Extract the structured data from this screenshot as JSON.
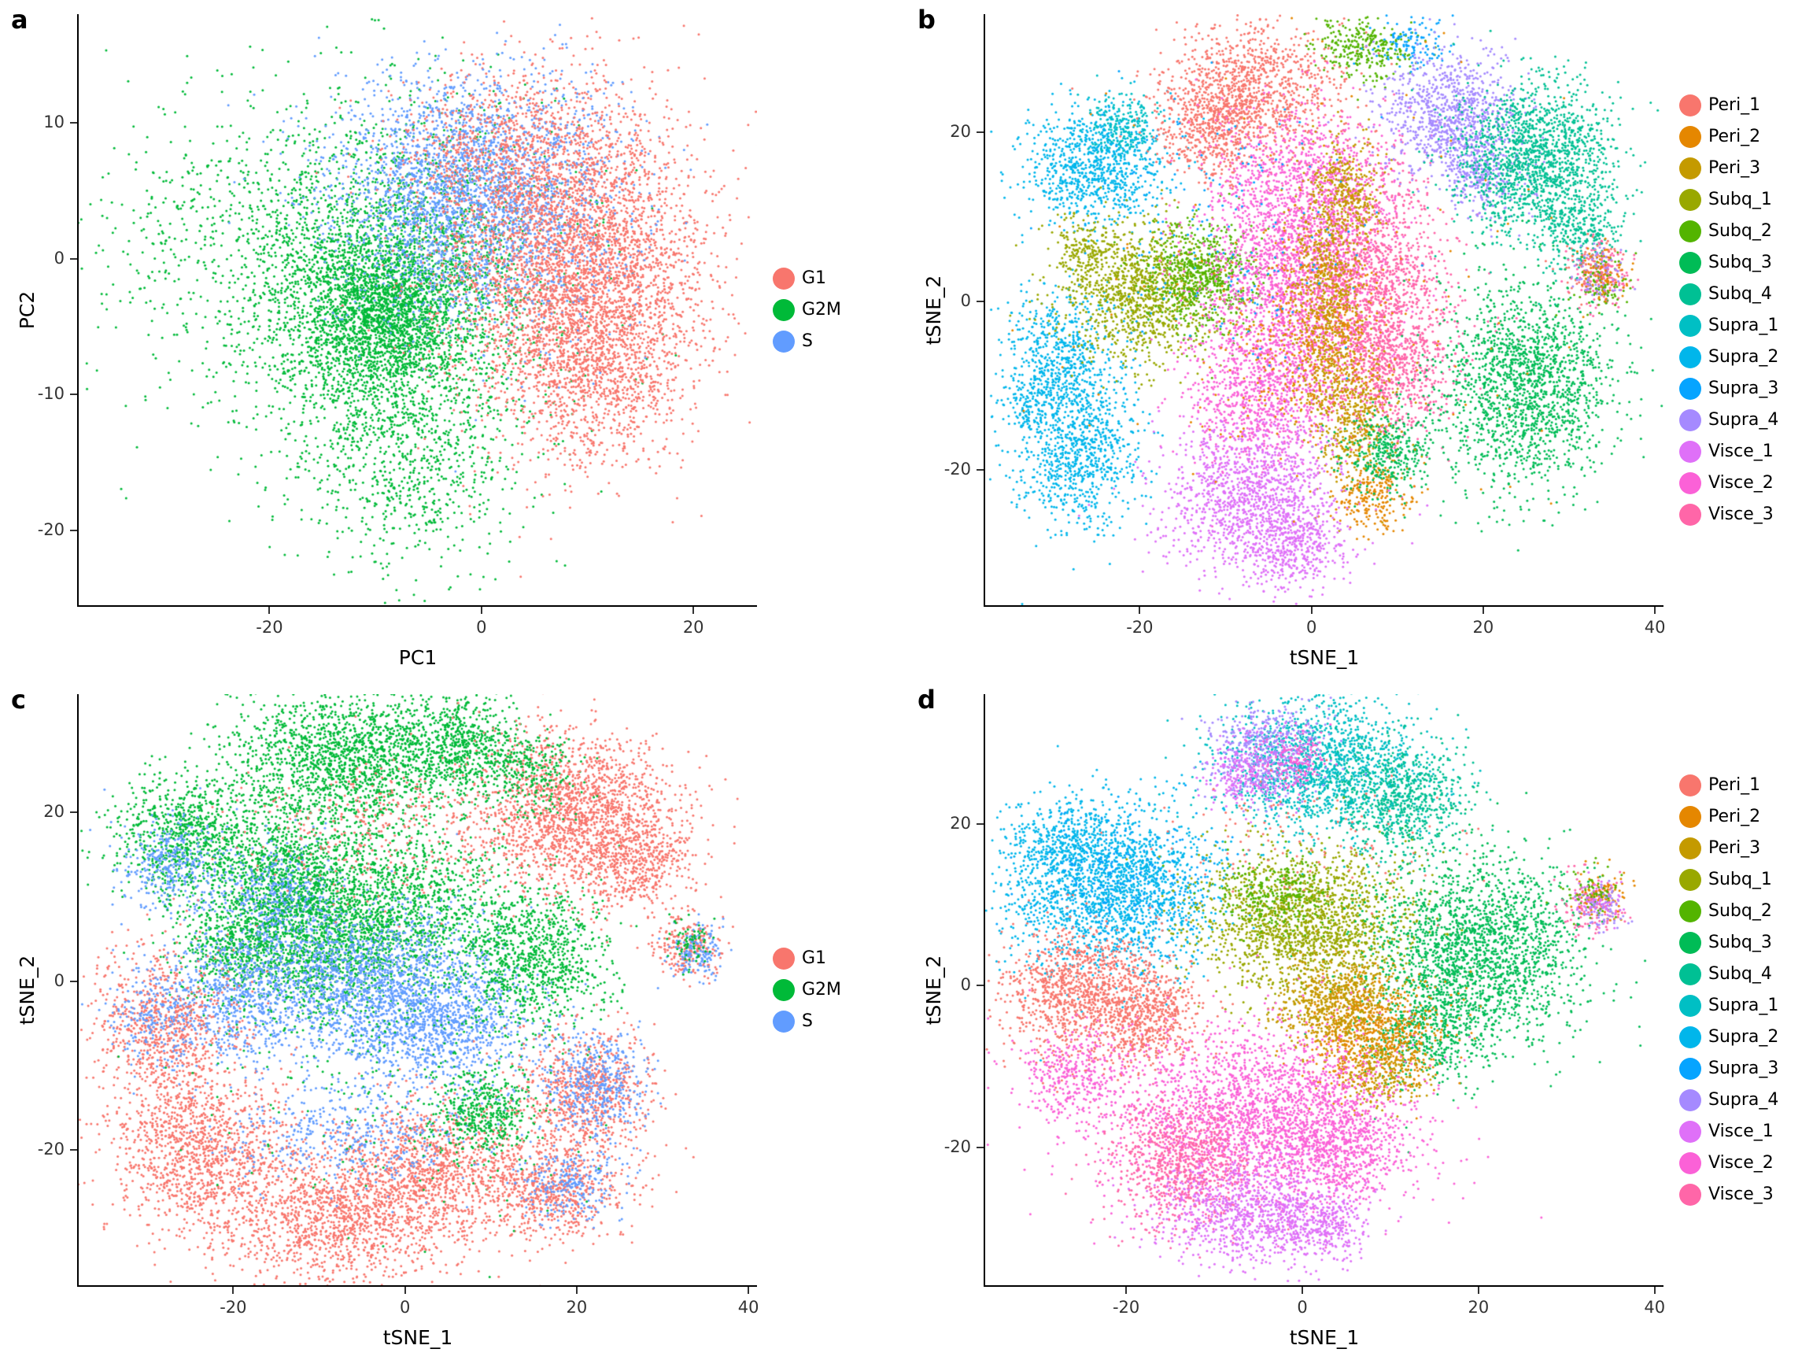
{
  "palette": {
    "phase": {
      "G1": "#F8766D",
      "G2M": "#00BA38",
      "S": "#619CFF"
    },
    "sample": {
      "Peri_1": "#F8766D",
      "Peri_2": "#E58700",
      "Peri_3": "#C49A00",
      "Subq_1": "#99A800",
      "Subq_2": "#53B400",
      "Subq_3": "#00BC56",
      "Subq_4": "#00C094",
      "Supra_1": "#00BFC4",
      "Supra_2": "#00B6EB",
      "Supra_3": "#06A4FF",
      "Supra_4": "#A58AFF",
      "Visce_1": "#DF70F8",
      "Visce_2": "#FB61D7",
      "Visce_3": "#FF66A8"
    }
  },
  "legends": {
    "phase": {
      "items": [
        "G1",
        "G2M",
        "S"
      ]
    },
    "sample": {
      "items": [
        "Peri_1",
        "Peri_2",
        "Peri_3",
        "Subq_1",
        "Subq_2",
        "Subq_3",
        "Subq_4",
        "Supra_1",
        "Supra_2",
        "Supra_3",
        "Supra_4",
        "Visce_1",
        "Visce_2",
        "Visce_3"
      ]
    }
  },
  "cluster_fields": [
    "group",
    "center_x",
    "center_y",
    "sd_x",
    "sd_y",
    "n_points"
  ],
  "chart_data": [
    {
      "id": "a",
      "panel_label": "a",
      "type": "scatter",
      "xlabel": "PC1",
      "ylabel": "PC2",
      "xlim": [
        -38,
        26
      ],
      "ylim": [
        -25.5,
        18
      ],
      "xticks": [
        -20,
        0,
        20
      ],
      "yticks": [
        -20,
        -10,
        0,
        10
      ],
      "legend": "phase",
      "grid": false,
      "legend_position": "right",
      "clusters": [
        [
          "G2M",
          -14,
          1,
          10,
          6.5,
          1000
        ],
        [
          "G2M",
          -9,
          -3,
          6.5,
          5,
          2400
        ],
        [
          "G2M",
          -9,
          -3.5,
          3.5,
          2.8,
          1200
        ],
        [
          "G2M",
          -8,
          -12,
          6.5,
          4.5,
          700
        ],
        [
          "G2M",
          -6,
          -17,
          5,
          3.5,
          250
        ],
        [
          "G2M",
          -27,
          2,
          6,
          5,
          180
        ],
        [
          "G2M",
          -4,
          0,
          8,
          6,
          400
        ],
        [
          "S",
          -2,
          7.5,
          7,
          3.2,
          900
        ],
        [
          "S",
          -1,
          3.5,
          6,
          4,
          1600
        ],
        [
          "G1",
          3,
          8,
          6,
          3,
          700
        ],
        [
          "G1",
          7,
          0.5,
          6,
          6,
          2400
        ],
        [
          "G1",
          11,
          -2,
          4.5,
          5,
          1400
        ],
        [
          "G1",
          10,
          -9,
          4,
          3.5,
          600
        ],
        [
          "G1",
          17,
          -2,
          4,
          6,
          300
        ],
        [
          "S",
          2,
          3,
          7,
          5,
          500
        ]
      ]
    },
    {
      "id": "b",
      "panel_label": "b",
      "type": "scatter",
      "xlabel": "tSNE_1",
      "ylabel": "tSNE_2",
      "xlim": [
        -38,
        41
      ],
      "ylim": [
        -36,
        34
      ],
      "xticks": [
        -20,
        0,
        20,
        40
      ],
      "yticks": [
        -20,
        0,
        20
      ],
      "legend": "sample",
      "grid": false,
      "legend_position": "right",
      "clusters": [
        [
          "Supra_2",
          -25,
          16,
          4,
          3.5,
          900
        ],
        [
          "Supra_2",
          -29,
          -7,
          3.2,
          4,
          650
        ],
        [
          "Supra_2",
          -27,
          -18,
          3.4,
          4.5,
          800
        ],
        [
          "Supra_2",
          -33,
          -13,
          1.5,
          1.5,
          100
        ],
        [
          "Supra_1",
          -22,
          21,
          2.2,
          2,
          200
        ],
        [
          "Subq_1",
          -20,
          1,
          4.5,
          4,
          1100
        ],
        [
          "Subq_2",
          -13,
          3,
          3.2,
          3.2,
          700
        ],
        [
          "Subq_1",
          -26,
          6,
          2,
          2,
          150
        ],
        [
          "Peri_1",
          -7,
          25,
          5,
          3.8,
          1100
        ],
        [
          "Peri_1",
          -12,
          20,
          3,
          3,
          400
        ],
        [
          "Subq_2",
          6,
          30,
          3,
          2,
          300
        ],
        [
          "Supra_3",
          12,
          30.5,
          2,
          1.5,
          120
        ],
        [
          "Visce_2",
          -1,
          12,
          5.5,
          5,
          1300
        ],
        [
          "Visce_2",
          -3,
          -1,
          5,
          6,
          1400
        ],
        [
          "Visce_2",
          -6,
          -12,
          4,
          4,
          700
        ],
        [
          "Visce_3",
          7,
          2,
          4.5,
          7,
          1500
        ],
        [
          "Visce_3",
          10,
          -8,
          3.5,
          4,
          600
        ],
        [
          "Peri_3",
          2,
          0,
          2,
          6,
          600
        ],
        [
          "Peri_3",
          4,
          13,
          2.2,
          3,
          350
        ],
        [
          "Peri_3",
          5,
          -14,
          2.5,
          4,
          450
        ],
        [
          "Peri_2",
          0,
          -4,
          4.5,
          6,
          450
        ],
        [
          "Peri_2",
          7,
          -23,
          2.2,
          2,
          250
        ],
        [
          "Supra_4",
          16,
          22,
          4,
          3.6,
          900
        ],
        [
          "Supra_4",
          20,
          15,
          2.5,
          2.5,
          300
        ],
        [
          "Subq_4",
          26,
          17,
          4.8,
          4.5,
          1500
        ],
        [
          "Subq_4",
          31,
          9,
          2.5,
          2.5,
          300
        ],
        [
          "Subq_3",
          25,
          -10,
          5,
          6,
          1700
        ],
        [
          "Subq_3",
          9,
          -18,
          2.6,
          2.4,
          350
        ],
        [
          "Visce_1",
          -7,
          -23,
          5,
          4.5,
          1200
        ],
        [
          "Visce_1",
          -2,
          -29,
          3,
          2.5,
          400
        ],
        [
          "Supra_3",
          -10,
          8,
          8,
          8,
          180
        ],
        [
          "Peri_2",
          0,
          0,
          18,
          15,
          150
        ],
        [
          "Visce_3",
          34,
          3,
          1.8,
          1.8,
          150
        ],
        [
          "Peri_1",
          33,
          4,
          1.6,
          1.6,
          100
        ],
        [
          "Subq_2",
          34,
          2,
          1.6,
          1.6,
          90
        ],
        [
          "Supra_4",
          33.5,
          3.5,
          1.5,
          1.5,
          80
        ],
        [
          "Peri_2",
          34,
          3,
          1.5,
          1.5,
          70
        ]
      ]
    },
    {
      "id": "c",
      "panel_label": "c",
      "type": "scatter",
      "xlabel": "tSNE_1",
      "ylabel": "tSNE_2",
      "xlim": [
        -38,
        41
      ],
      "ylim": [
        -36,
        34
      ],
      "xticks": [
        -20,
        0,
        20,
        40
      ],
      "yticks": [
        -20,
        0,
        20
      ],
      "legend": "phase",
      "grid": false,
      "legend_position": "right",
      "clusters": [
        [
          "G2M",
          -7,
          26,
          7,
          4,
          1700
        ],
        [
          "G2M",
          6,
          28,
          4,
          3,
          600
        ],
        [
          "G2M",
          -25,
          17,
          4.4,
          3.8,
          900
        ],
        [
          "S",
          -27,
          14,
          3,
          2.5,
          350
        ],
        [
          "G2M",
          -14,
          12,
          4,
          4,
          800
        ],
        [
          "S",
          -15,
          10,
          3.5,
          3,
          450
        ],
        [
          "G2M",
          -3,
          9,
          7.5,
          5,
          1700
        ],
        [
          "G2M",
          -10,
          3,
          5,
          4,
          800
        ],
        [
          "G2M",
          -20,
          4,
          3.5,
          3,
          500
        ],
        [
          "S",
          -5,
          0,
          7.5,
          4.5,
          1600
        ],
        [
          "S",
          4,
          -5,
          5.5,
          4,
          1000
        ],
        [
          "S",
          -20,
          -2,
          4,
          4,
          600
        ],
        [
          "G1",
          -28,
          -5,
          4,
          4.5,
          800
        ],
        [
          "S",
          -29,
          -4,
          3,
          3,
          250
        ],
        [
          "G2M",
          15,
          3,
          4.2,
          4,
          900
        ],
        [
          "G1",
          20,
          20,
          6,
          4.6,
          1800
        ],
        [
          "G1",
          27,
          14,
          3.5,
          3,
          450
        ],
        [
          "G2M",
          14,
          25,
          3,
          2.5,
          300
        ],
        [
          "G1",
          -24,
          -20,
          5,
          4.6,
          1200
        ],
        [
          "G1",
          -8,
          -28,
          7,
          4,
          1400
        ],
        [
          "G1",
          3,
          -22,
          5,
          4,
          900
        ],
        [
          "S",
          -6,
          -18,
          7,
          3,
          450
        ],
        [
          "G2M",
          9,
          -16,
          3,
          2.6,
          450
        ],
        [
          "G1",
          21,
          -13,
          4,
          4,
          800
        ],
        [
          "S",
          22,
          -12,
          3,
          3,
          450
        ],
        [
          "G1",
          17,
          -25,
          4.5,
          3,
          700
        ],
        [
          "S",
          19,
          -24,
          3,
          2.2,
          250
        ],
        [
          "G2M",
          0,
          -10,
          12,
          8,
          300
        ],
        [
          "G1",
          -3,
          18,
          8,
          4,
          300
        ],
        [
          "G1",
          33,
          4,
          1.9,
          1.9,
          220
        ],
        [
          "S",
          34,
          3.5,
          1.6,
          1.6,
          150
        ],
        [
          "G2M",
          33,
          5,
          1.4,
          1.4,
          70
        ]
      ]
    },
    {
      "id": "d",
      "panel_label": "d",
      "type": "scatter",
      "xlabel": "tSNE_1",
      "ylabel": "tSNE_2",
      "xlim": [
        -36,
        41
      ],
      "ylim": [
        -37,
        36
      ],
      "xticks": [
        -20,
        0,
        20,
        40
      ],
      "yticks": [
        -20,
        0,
        20
      ],
      "legend": "sample",
      "grid": false,
      "legend_position": "right",
      "clusters": [
        [
          "Supra_1",
          2,
          27,
          6,
          4.2,
          1500
        ],
        [
          "Subq_4",
          11,
          23,
          3.8,
          3.5,
          700
        ],
        [
          "Supra_4",
          -4,
          29,
          3.4,
          2.8,
          500
        ],
        [
          "Visce_1",
          -6,
          26,
          2.5,
          2.2,
          250
        ],
        [
          "Visce_2",
          -1,
          28,
          2,
          2,
          150
        ],
        [
          "Supra_2",
          -22,
          12,
          6,
          5,
          1900
        ],
        [
          "Supra_2",
          -27,
          18,
          3,
          2.5,
          300
        ],
        [
          "Supra_3",
          -20,
          13,
          5,
          4,
          250
        ],
        [
          "Subq_1",
          0,
          8,
          6,
          4.4,
          1700
        ],
        [
          "Subq_2",
          -3,
          11,
          3.5,
          2.5,
          300
        ],
        [
          "Subq_3",
          20,
          4,
          6,
          6,
          2100
        ],
        [
          "Subq_3",
          14,
          -6,
          3,
          3,
          400
        ],
        [
          "Peri_1",
          -25,
          -1,
          4.4,
          4,
          1100
        ],
        [
          "Peri_1",
          -17,
          -4,
          3,
          3,
          500
        ],
        [
          "Peri_2",
          8,
          -6,
          4,
          3.4,
          800
        ],
        [
          "Peri_3",
          4,
          -2,
          3.5,
          3,
          650
        ],
        [
          "Peri_3",
          9,
          -11,
          2.5,
          2,
          250
        ],
        [
          "Visce_2",
          -5,
          -16,
          8.5,
          5.5,
          2400
        ],
        [
          "Visce_2",
          4,
          -20,
          4,
          3.5,
          600
        ],
        [
          "Visce_2",
          -26,
          -11,
          3,
          3,
          350
        ],
        [
          "Visce_3",
          -14,
          -22,
          4,
          4,
          800
        ],
        [
          "Visce_1",
          -6,
          -28,
          5,
          3.2,
          900
        ],
        [
          "Visce_1",
          2,
          -30,
          3,
          2,
          300
        ],
        [
          "Peri_1",
          0,
          18,
          10,
          4,
          120
        ],
        [
          "Visce_3",
          33,
          10,
          1.8,
          1.8,
          150
        ],
        [
          "Peri_2",
          34,
          11,
          1.6,
          1.6,
          90
        ],
        [
          "Subq_2",
          33,
          11,
          1.5,
          1.5,
          80
        ],
        [
          "Supra_4",
          34,
          9.5,
          1.4,
          1.4,
          70
        ],
        [
          "Visce_1",
          33.5,
          10.5,
          1.4,
          1.4,
          60
        ]
      ]
    }
  ]
}
